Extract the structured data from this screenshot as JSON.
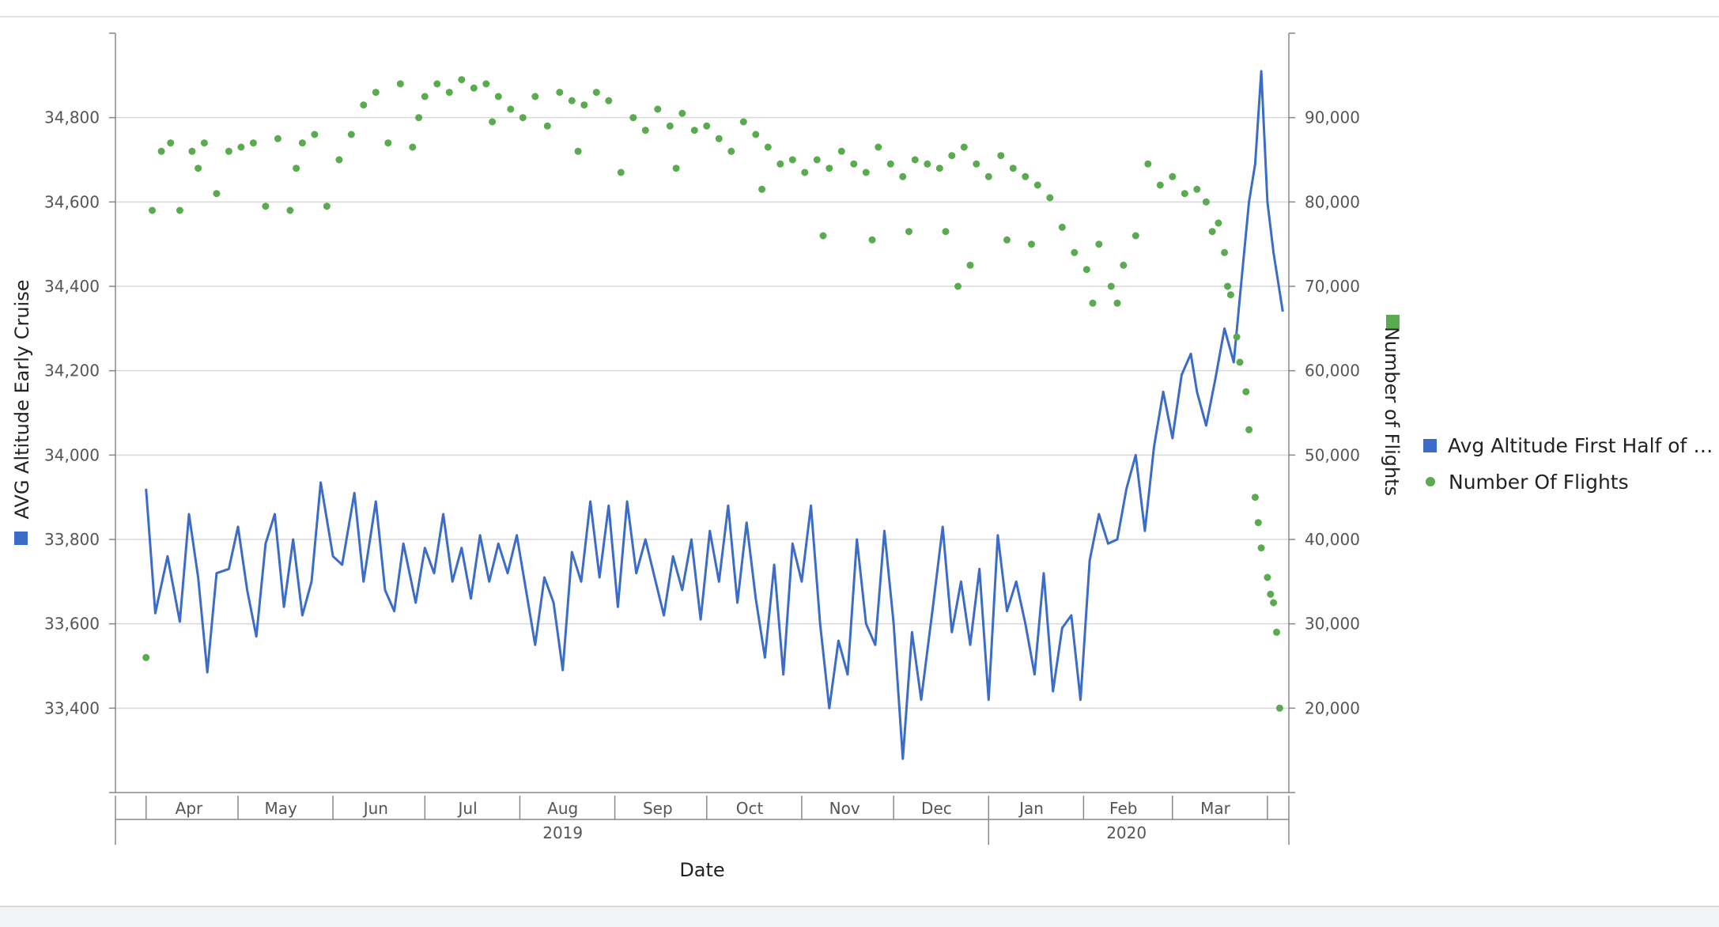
{
  "chart_data": {
    "type": "line",
    "xlabel": "Date",
    "ylabel_left": "AVG Altitude Early Cruise",
    "ylabel_right": "Number of Flights",
    "y_left_ticks": [
      "33,400",
      "33,600",
      "33,800",
      "34,000",
      "34,200",
      "34,400",
      "34,600",
      "34,800"
    ],
    "y_left_values": [
      33400,
      33600,
      33800,
      34000,
      34200,
      34400,
      34600,
      34800
    ],
    "y_left_range": [
      33200,
      35000
    ],
    "y_right_ticks": [
      "20,000",
      "30,000",
      "40,000",
      "50,000",
      "60,000",
      "70,000",
      "80,000",
      "90,000"
    ],
    "y_right_values": [
      20000,
      30000,
      40000,
      50000,
      60000,
      70000,
      80000,
      90000
    ],
    "y_right_range": [
      10000,
      100000
    ],
    "x_range": [
      "2019-03-22",
      "2020-04-08"
    ],
    "month_labels": [
      {
        "label": "Apr",
        "date": "2019-04-15"
      },
      {
        "label": "May",
        "date": "2019-05-15"
      },
      {
        "label": "Jun",
        "date": "2019-06-15"
      },
      {
        "label": "Jul",
        "date": "2019-07-15"
      },
      {
        "label": "Aug",
        "date": "2019-08-15"
      },
      {
        "label": "Sep",
        "date": "2019-09-15"
      },
      {
        "label": "Oct",
        "date": "2019-10-15"
      },
      {
        "label": "Nov",
        "date": "2019-11-15"
      },
      {
        "label": "Dec",
        "date": "2019-12-15"
      },
      {
        "label": "Jan",
        "date": "2020-01-15"
      },
      {
        "label": "Feb",
        "date": "2020-02-14"
      },
      {
        "label": "Mar",
        "date": "2020-03-15"
      }
    ],
    "month_boundaries": [
      "2019-04-01",
      "2019-05-01",
      "2019-06-01",
      "2019-07-01",
      "2019-08-01",
      "2019-09-01",
      "2019-10-01",
      "2019-11-01",
      "2019-12-01",
      "2020-01-01",
      "2020-02-01",
      "2020-03-01",
      "2020-04-01"
    ],
    "year_labels": [
      {
        "label": "2019",
        "date": "2019-08-15"
      },
      {
        "label": "2020",
        "date": "2020-02-15"
      }
    ],
    "year_boundary": "2020-01-01",
    "grid": true,
    "legend_position": "right",
    "series": [
      {
        "name": "Avg Altitude First Half of Cr...",
        "type": "line",
        "axis": "left",
        "color": "#3b6cc8",
        "points": [
          [
            "2019-04-01",
            33920
          ],
          [
            "2019-04-04",
            33625
          ],
          [
            "2019-04-08",
            33760
          ],
          [
            "2019-04-12",
            33605
          ],
          [
            "2019-04-15",
            33860
          ],
          [
            "2019-04-18",
            33710
          ],
          [
            "2019-04-21",
            33485
          ],
          [
            "2019-04-24",
            33720
          ],
          [
            "2019-04-28",
            33730
          ],
          [
            "2019-05-01",
            33830
          ],
          [
            "2019-05-04",
            33680
          ],
          [
            "2019-05-07",
            33570
          ],
          [
            "2019-05-10",
            33790
          ],
          [
            "2019-05-13",
            33860
          ],
          [
            "2019-05-16",
            33640
          ],
          [
            "2019-05-19",
            33800
          ],
          [
            "2019-05-22",
            33620
          ],
          [
            "2019-05-25",
            33700
          ],
          [
            "2019-05-28",
            33935
          ],
          [
            "2019-06-01",
            33760
          ],
          [
            "2019-06-04",
            33740
          ],
          [
            "2019-06-08",
            33910
          ],
          [
            "2019-06-11",
            33700
          ],
          [
            "2019-06-15",
            33890
          ],
          [
            "2019-06-18",
            33680
          ],
          [
            "2019-06-21",
            33630
          ],
          [
            "2019-06-24",
            33790
          ],
          [
            "2019-06-28",
            33650
          ],
          [
            "2019-07-01",
            33780
          ],
          [
            "2019-07-04",
            33720
          ],
          [
            "2019-07-07",
            33860
          ],
          [
            "2019-07-10",
            33700
          ],
          [
            "2019-07-13",
            33780
          ],
          [
            "2019-07-16",
            33660
          ],
          [
            "2019-07-19",
            33810
          ],
          [
            "2019-07-22",
            33700
          ],
          [
            "2019-07-25",
            33790
          ],
          [
            "2019-07-28",
            33720
          ],
          [
            "2019-07-31",
            33810
          ],
          [
            "2019-08-03",
            33680
          ],
          [
            "2019-08-06",
            33550
          ],
          [
            "2019-08-09",
            33710
          ],
          [
            "2019-08-12",
            33650
          ],
          [
            "2019-08-15",
            33490
          ],
          [
            "2019-08-18",
            33770
          ],
          [
            "2019-08-21",
            33700
          ],
          [
            "2019-08-24",
            33890
          ],
          [
            "2019-08-27",
            33710
          ],
          [
            "2019-08-30",
            33880
          ],
          [
            "2019-09-02",
            33640
          ],
          [
            "2019-09-05",
            33890
          ],
          [
            "2019-09-08",
            33720
          ],
          [
            "2019-09-11",
            33800
          ],
          [
            "2019-09-14",
            33710
          ],
          [
            "2019-09-17",
            33620
          ],
          [
            "2019-09-20",
            33760
          ],
          [
            "2019-09-23",
            33680
          ],
          [
            "2019-09-26",
            33800
          ],
          [
            "2019-09-29",
            33610
          ],
          [
            "2019-10-02",
            33820
          ],
          [
            "2019-10-05",
            33700
          ],
          [
            "2019-10-08",
            33880
          ],
          [
            "2019-10-11",
            33650
          ],
          [
            "2019-10-14",
            33840
          ],
          [
            "2019-10-17",
            33660
          ],
          [
            "2019-10-20",
            33520
          ],
          [
            "2019-10-23",
            33740
          ],
          [
            "2019-10-26",
            33480
          ],
          [
            "2019-10-29",
            33790
          ],
          [
            "2019-11-01",
            33700
          ],
          [
            "2019-11-04",
            33880
          ],
          [
            "2019-11-07",
            33600
          ],
          [
            "2019-11-10",
            33400
          ],
          [
            "2019-11-13",
            33560
          ],
          [
            "2019-11-16",
            33480
          ],
          [
            "2019-11-19",
            33800
          ],
          [
            "2019-11-22",
            33600
          ],
          [
            "2019-11-25",
            33550
          ],
          [
            "2019-11-28",
            33820
          ],
          [
            "2019-12-01",
            33600
          ],
          [
            "2019-12-04",
            33280
          ],
          [
            "2019-12-07",
            33580
          ],
          [
            "2019-12-10",
            33420
          ],
          [
            "2019-12-14",
            33650
          ],
          [
            "2019-12-17",
            33830
          ],
          [
            "2019-12-20",
            33580
          ],
          [
            "2019-12-23",
            33700
          ],
          [
            "2019-12-26",
            33550
          ],
          [
            "2019-12-29",
            33730
          ],
          [
            "2020-01-01",
            33420
          ],
          [
            "2020-01-04",
            33810
          ],
          [
            "2020-01-07",
            33630
          ],
          [
            "2020-01-10",
            33700
          ],
          [
            "2020-01-13",
            33600
          ],
          [
            "2020-01-16",
            33480
          ],
          [
            "2020-01-19",
            33720
          ],
          [
            "2020-01-22",
            33440
          ],
          [
            "2020-01-25",
            33590
          ],
          [
            "2020-01-28",
            33620
          ],
          [
            "2020-01-31",
            33420
          ],
          [
            "2020-02-03",
            33750
          ],
          [
            "2020-02-06",
            33860
          ],
          [
            "2020-02-09",
            33790
          ],
          [
            "2020-02-12",
            33800
          ],
          [
            "2020-02-15",
            33920
          ],
          [
            "2020-02-18",
            34000
          ],
          [
            "2020-02-21",
            33820
          ],
          [
            "2020-02-24",
            34020
          ],
          [
            "2020-02-27",
            34150
          ],
          [
            "2020-03-01",
            34040
          ],
          [
            "2020-03-04",
            34190
          ],
          [
            "2020-03-07",
            34240
          ],
          [
            "2020-03-09",
            34150
          ],
          [
            "2020-03-12",
            34070
          ],
          [
            "2020-03-15",
            34180
          ],
          [
            "2020-03-18",
            34300
          ],
          [
            "2020-03-21",
            34220
          ],
          [
            "2020-03-24",
            34450
          ],
          [
            "2020-03-26",
            34600
          ],
          [
            "2020-03-28",
            34690
          ],
          [
            "2020-03-30",
            34910
          ],
          [
            "2020-04-01",
            34600
          ],
          [
            "2020-04-03",
            34480
          ],
          [
            "2020-04-06",
            34340
          ]
        ]
      },
      {
        "name": "Number Of Flights",
        "type": "scatter",
        "axis": "right",
        "color": "#5aaa4f",
        "points": [
          [
            "2019-04-01",
            26000
          ],
          [
            "2019-04-03",
            79000
          ],
          [
            "2019-04-06",
            86000
          ],
          [
            "2019-04-09",
            87000
          ],
          [
            "2019-04-12",
            79000
          ],
          [
            "2019-04-16",
            86000
          ],
          [
            "2019-04-20",
            87000
          ],
          [
            "2019-04-24",
            81000
          ],
          [
            "2019-04-28",
            86000
          ],
          [
            "2019-05-02",
            86500
          ],
          [
            "2019-05-06",
            87000
          ],
          [
            "2019-05-10",
            79500
          ],
          [
            "2019-05-14",
            87500
          ],
          [
            "2019-05-18",
            79000
          ],
          [
            "2019-05-22",
            87000
          ],
          [
            "2019-05-26",
            88000
          ],
          [
            "2019-05-30",
            79500
          ],
          [
            "2019-06-03",
            85000
          ],
          [
            "2019-06-07",
            88000
          ],
          [
            "2019-06-11",
            91500
          ],
          [
            "2019-06-15",
            93000
          ],
          [
            "2019-06-19",
            87000
          ],
          [
            "2019-06-23",
            94000
          ],
          [
            "2019-06-27",
            86500
          ],
          [
            "2019-07-01",
            92500
          ],
          [
            "2019-07-05",
            94000
          ],
          [
            "2019-07-09",
            93000
          ],
          [
            "2019-07-13",
            94500
          ],
          [
            "2019-07-17",
            93500
          ],
          [
            "2019-07-21",
            94000
          ],
          [
            "2019-07-25",
            92500
          ],
          [
            "2019-07-29",
            91000
          ],
          [
            "2019-08-02",
            90000
          ],
          [
            "2019-08-06",
            92500
          ],
          [
            "2019-08-10",
            89000
          ],
          [
            "2019-08-14",
            93000
          ],
          [
            "2019-08-18",
            92000
          ],
          [
            "2019-08-22",
            91500
          ],
          [
            "2019-08-26",
            93000
          ],
          [
            "2019-08-30",
            92000
          ],
          [
            "2019-09-03",
            83500
          ],
          [
            "2019-09-07",
            90000
          ],
          [
            "2019-09-11",
            88500
          ],
          [
            "2019-09-15",
            91000
          ],
          [
            "2019-09-19",
            89000
          ],
          [
            "2019-09-23",
            90500
          ],
          [
            "2019-09-27",
            88500
          ],
          [
            "2019-10-01",
            89000
          ],
          [
            "2019-10-05",
            87500
          ],
          [
            "2019-10-09",
            86000
          ],
          [
            "2019-10-13",
            89500
          ],
          [
            "2019-10-17",
            88000
          ],
          [
            "2019-10-21",
            86500
          ],
          [
            "2019-10-25",
            84500
          ],
          [
            "2019-10-29",
            85000
          ],
          [
            "2019-11-02",
            83500
          ],
          [
            "2019-11-06",
            85000
          ],
          [
            "2019-11-10",
            84000
          ],
          [
            "2019-11-14",
            86000
          ],
          [
            "2019-11-18",
            84500
          ],
          [
            "2019-11-22",
            83500
          ],
          [
            "2019-11-26",
            86500
          ],
          [
            "2019-11-30",
            84500
          ],
          [
            "2019-12-04",
            83000
          ],
          [
            "2019-12-08",
            85000
          ],
          [
            "2019-12-12",
            84500
          ],
          [
            "2019-12-16",
            84000
          ],
          [
            "2019-12-20",
            85500
          ],
          [
            "2019-12-24",
            86500
          ],
          [
            "2019-12-28",
            84500
          ],
          [
            "2020-01-01",
            83000
          ],
          [
            "2020-01-05",
            85500
          ],
          [
            "2020-01-09",
            84000
          ],
          [
            "2020-01-13",
            83000
          ],
          [
            "2020-01-17",
            82000
          ],
          [
            "2020-01-21",
            80500
          ],
          [
            "2020-01-25",
            77000
          ],
          [
            "2020-01-29",
            74000
          ],
          [
            "2020-02-02",
            72000
          ],
          [
            "2020-02-06",
            75000
          ],
          [
            "2020-02-10",
            70000
          ],
          [
            "2020-02-14",
            72500
          ],
          [
            "2020-02-18",
            76000
          ],
          [
            "2020-02-22",
            84500
          ],
          [
            "2020-02-26",
            82000
          ],
          [
            "2020-03-01",
            83000
          ],
          [
            "2020-03-05",
            81000
          ],
          [
            "2020-03-09",
            81500
          ],
          [
            "2020-03-12",
            80000
          ],
          [
            "2020-03-14",
            76500
          ],
          [
            "2020-03-16",
            77500
          ],
          [
            "2020-03-18",
            74000
          ],
          [
            "2020-03-19",
            70000
          ],
          [
            "2020-03-20",
            69000
          ],
          [
            "2020-03-22",
            64000
          ],
          [
            "2020-03-23",
            61000
          ],
          [
            "2020-03-25",
            57500
          ],
          [
            "2020-03-26",
            53000
          ],
          [
            "2020-03-28",
            45000
          ],
          [
            "2020-03-29",
            42000
          ],
          [
            "2020-03-30",
            39000
          ],
          [
            "2020-04-01",
            35500
          ],
          [
            "2020-04-02",
            33500
          ],
          [
            "2020-04-03",
            32500
          ],
          [
            "2020-04-04",
            29000
          ],
          [
            "2020-04-05",
            20000
          ],
          [
            "2019-04-18",
            84000
          ],
          [
            "2019-05-20",
            84000
          ],
          [
            "2019-06-29",
            90000
          ],
          [
            "2019-07-23",
            89500
          ],
          [
            "2019-08-20",
            86000
          ],
          [
            "2019-09-21",
            84000
          ],
          [
            "2019-10-19",
            81500
          ],
          [
            "2019-11-08",
            76000
          ],
          [
            "2019-11-24",
            75500
          ],
          [
            "2019-12-06",
            76500
          ],
          [
            "2019-12-18",
            76500
          ],
          [
            "2019-12-22",
            70000
          ],
          [
            "2019-12-26",
            72500
          ],
          [
            "2020-01-07",
            75500
          ],
          [
            "2020-01-15",
            75000
          ],
          [
            "2020-02-04",
            68000
          ],
          [
            "2020-02-12",
            68000
          ]
        ]
      }
    ]
  },
  "legend": {
    "items": [
      {
        "label": "Avg Altitude First Half of Cr...",
        "color": "#3b6cc8"
      },
      {
        "label": "Number Of Flights",
        "color": "#5aaa4f"
      }
    ]
  }
}
